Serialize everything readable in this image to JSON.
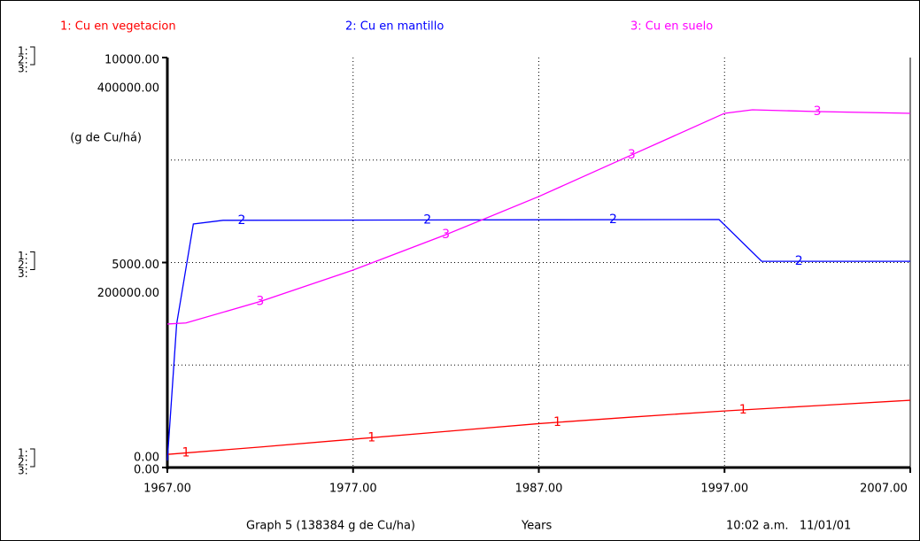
{
  "chart_data": {
    "type": "line",
    "x_label": "Years",
    "y_label": "(g de Cu/há)",
    "footer_left": "Graph 5 (138384 g de Cu/ha)",
    "footer_right": "10:02 a.m.   11/01/01",
    "axis_keys": [
      "1:",
      "2:",
      "3:"
    ],
    "xlim": [
      1967,
      2007
    ],
    "xticks": [
      {
        "value": 1967,
        "label": "1967.00"
      },
      {
        "value": 1977,
        "label": "1977.00"
      },
      {
        "value": 1987,
        "label": "1987.00"
      },
      {
        "value": 1997,
        "label": "1997.00"
      },
      {
        "value": 2007,
        "label": "2007.00"
      }
    ],
    "ylim": [
      0,
      10000
    ],
    "yticks": [
      {
        "value": 0,
        "label": "0.00"
      },
      {
        "value": 5000,
        "label": "5000.00"
      },
      {
        "value": 10000,
        "label": "10000.00"
      }
    ],
    "y2lim": [
      0,
      400000
    ],
    "y2ticks": [
      {
        "value": 0,
        "label": "0.00"
      },
      {
        "value": 200000,
        "label": "200000.00"
      },
      {
        "value": 400000,
        "label": "400000.00"
      }
    ],
    "ygrid": [
      2500,
      5000,
      7500
    ],
    "grid": true,
    "series": [
      {
        "name": "1: Cu en vegetacion",
        "marker": "1",
        "color": "#ff0000",
        "x": [
          1967,
          1972,
          1977,
          1982,
          1987,
          1992,
          1997,
          2002,
          2007
        ],
        "values": [
          320,
          500,
          690,
          880,
          1070,
          1230,
          1380,
          1510,
          1640
        ]
      },
      {
        "name": "2: Cu en mantillo",
        "marker": "2",
        "color": "#0000ff",
        "x": [
          1967,
          1967.5,
          1968.4,
          1970,
          1996.7,
          1999,
          2007
        ],
        "values": [
          170,
          3500,
          5940,
          6030,
          6050,
          5030,
          5030
        ]
      },
      {
        "name": "3: Cu en suelo",
        "marker": "3",
        "color": "#ff00ff",
        "axis": "y2",
        "x": [
          1967,
          1968,
          1972,
          1977,
          1982,
          1987,
          1992,
          1997,
          1998.5,
          2002,
          2007
        ],
        "values": [
          140000,
          141000,
          162000,
          192650,
          227200,
          264400,
          305000,
          345600,
          349000,
          347300,
          345600
        ]
      }
    ]
  }
}
